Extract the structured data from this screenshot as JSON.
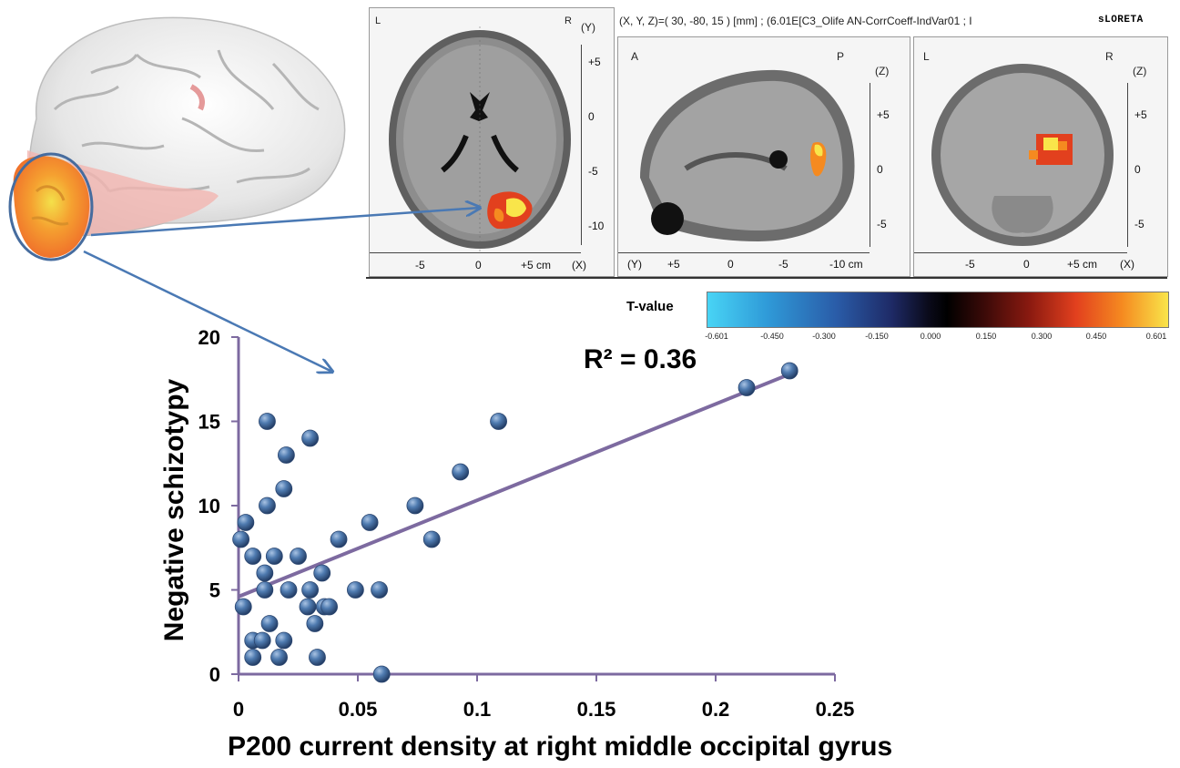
{
  "viewer": {
    "coord_readout": "(X, Y, Z)=( 30, -80, 15 ) [mm] ; (6.01E[C3_Olife AN-CorrCoeff-IndVar01 ; I",
    "brand": "sLORETA",
    "axial": {
      "left": "L",
      "right": "R",
      "axis_name": "(Y)",
      "side_ticks": [
        "+5",
        "0",
        "-5",
        "-10"
      ],
      "bottom_ticks": [
        "-5",
        "0",
        "+5 cm"
      ],
      "bottom_axis": "(X)"
    },
    "sagittal": {
      "left": "A",
      "right": "P",
      "axis_name": "(Z)",
      "side_ticks": [
        "+5",
        "0",
        "-5"
      ],
      "bottom_axis": "(Y)",
      "bottom_ticks": [
        "+5",
        "0",
        "-5",
        "-10 cm"
      ]
    },
    "coronal": {
      "left": "L",
      "right": "R",
      "axis_name": "(Z)",
      "side_ticks": [
        "+5",
        "0",
        "-5"
      ],
      "bottom_ticks": [
        "-5",
        "0",
        "+5 cm"
      ],
      "bottom_axis": "(X)"
    }
  },
  "colorbar": {
    "title": "T-value",
    "ticks": [
      "-0.601",
      "-0.450",
      "-0.300",
      "-0.150",
      "0.000",
      "0.150",
      "0.300",
      "0.450",
      "0.601"
    ],
    "colors": [
      "#48d4f5",
      "#2a5ca8",
      "#000000",
      "#8b1a10",
      "#e2401e",
      "#f9e54a"
    ]
  },
  "chart_data": {
    "type": "scatter",
    "title": "",
    "xlabel": "P200 current density at right middle occipital gyrus",
    "ylabel": "Negative schizotypy",
    "xlim": [
      0,
      0.25
    ],
    "ylim": [
      0,
      20
    ],
    "x_ticks": [
      "0",
      "0.05",
      "0.1",
      "0.15",
      "0.2",
      "0.25"
    ],
    "y_ticks": [
      "0",
      "5",
      "10",
      "15",
      "20"
    ],
    "annotation": "R² = 0.36",
    "trendline": {
      "x": [
        0,
        0.231
      ],
      "y": [
        4.6,
        17.8
      ]
    },
    "points": [
      {
        "x": 0.001,
        "y": 8
      },
      {
        "x": 0.003,
        "y": 9
      },
      {
        "x": 0.002,
        "y": 4
      },
      {
        "x": 0.006,
        "y": 7
      },
      {
        "x": 0.006,
        "y": 2
      },
      {
        "x": 0.006,
        "y": 1
      },
      {
        "x": 0.01,
        "y": 2
      },
      {
        "x": 0.011,
        "y": 6
      },
      {
        "x": 0.011,
        "y": 5
      },
      {
        "x": 0.012,
        "y": 15
      },
      {
        "x": 0.012,
        "y": 10
      },
      {
        "x": 0.013,
        "y": 3
      },
      {
        "x": 0.015,
        "y": 7
      },
      {
        "x": 0.017,
        "y": 1
      },
      {
        "x": 0.019,
        "y": 11
      },
      {
        "x": 0.019,
        "y": 2
      },
      {
        "x": 0.02,
        "y": 13
      },
      {
        "x": 0.021,
        "y": 5
      },
      {
        "x": 0.025,
        "y": 7
      },
      {
        "x": 0.029,
        "y": 4
      },
      {
        "x": 0.03,
        "y": 5
      },
      {
        "x": 0.03,
        "y": 14
      },
      {
        "x": 0.032,
        "y": 3
      },
      {
        "x": 0.033,
        "y": 1
      },
      {
        "x": 0.035,
        "y": 6
      },
      {
        "x": 0.036,
        "y": 4
      },
      {
        "x": 0.038,
        "y": 4
      },
      {
        "x": 0.042,
        "y": 8
      },
      {
        "x": 0.049,
        "y": 5
      },
      {
        "x": 0.055,
        "y": 9
      },
      {
        "x": 0.059,
        "y": 5
      },
      {
        "x": 0.06,
        "y": 0
      },
      {
        "x": 0.074,
        "y": 10
      },
      {
        "x": 0.081,
        "y": 8
      },
      {
        "x": 0.093,
        "y": 12
      },
      {
        "x": 0.109,
        "y": 15
      },
      {
        "x": 0.213,
        "y": 17
      },
      {
        "x": 0.231,
        "y": 18
      }
    ],
    "colors": {
      "axis": "#7d6aa0",
      "marker": "#3e6797",
      "trend": "#7d6aa0",
      "arrow": "#4a79b4"
    }
  }
}
